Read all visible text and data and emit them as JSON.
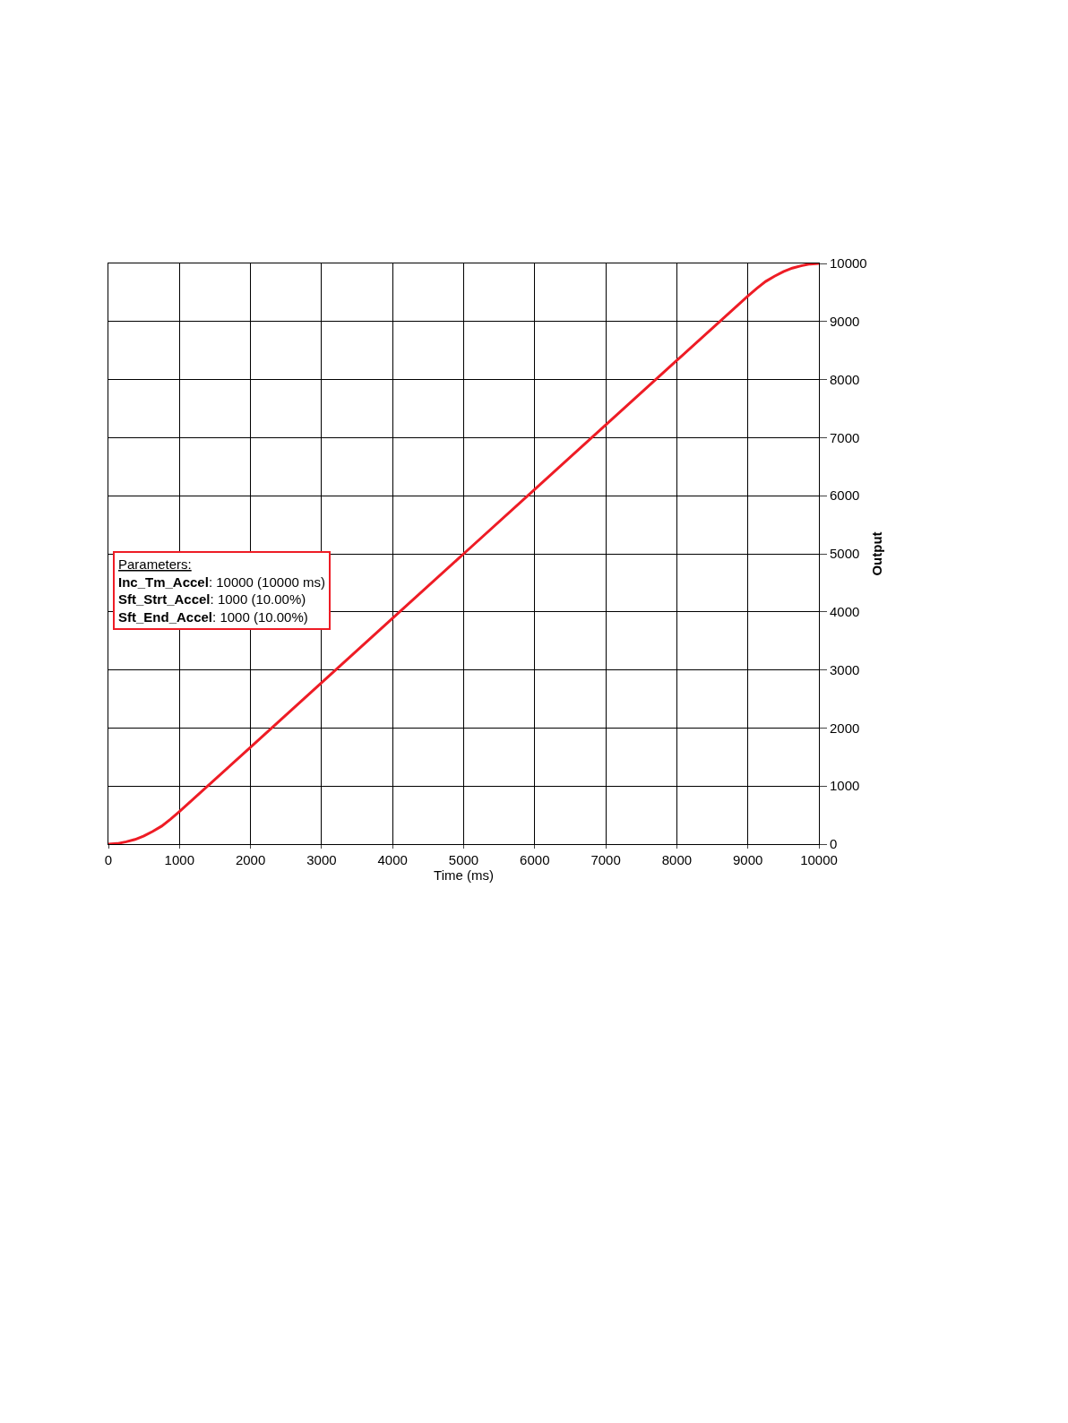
{
  "chart_data": {
    "type": "line",
    "xlabel": "Time (ms)",
    "ylabel": "Output",
    "x": [
      0,
      125,
      250,
      375,
      500,
      625,
      750,
      875,
      1000,
      2000,
      3000,
      4000,
      5000,
      6000,
      7000,
      8000,
      9000,
      9125,
      9250,
      9375,
      9500,
      9625,
      9750,
      9875,
      10000
    ],
    "series": [
      {
        "color": "#ee1c25",
        "values": [
          0,
          10,
          40,
          80,
          140,
          220,
          310,
          430,
          560,
          1670,
          2780,
          3890,
          5000,
          6110,
          7220,
          8330,
          9440,
          9570,
          9690,
          9780,
          9860,
          9920,
          9960,
          9990,
          10000
        ]
      }
    ],
    "xlim": [
      0,
      10000
    ],
    "xticks": [
      0,
      1000,
      2000,
      3000,
      4000,
      5000,
      6000,
      7000,
      8000,
      9000,
      10000
    ],
    "ylim": [
      0,
      10000
    ],
    "yticks": [
      0,
      1000,
      2000,
      3000,
      4000,
      5000,
      6000,
      7000,
      8000,
      9000,
      10000
    ],
    "grid": true,
    "marker": "none",
    "line_style": "solid",
    "annotations": [
      "Parameters:\nInc_Tm_Accel: 10000 (10000 ms)\nSft_Strt_Accel: 1000 (10.00%)\nSft_End_Accel: 1000 (10.00%)"
    ]
  }
}
